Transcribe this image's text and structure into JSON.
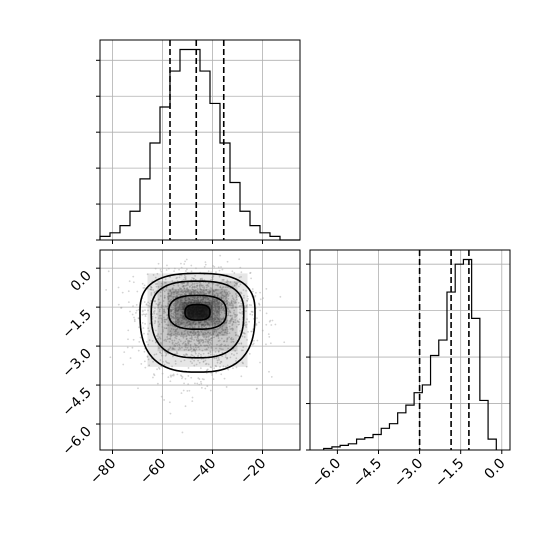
{
  "chart_data": [
    {
      "panel": "top-left",
      "type": "histogram",
      "xlim": [
        -85,
        -5
      ],
      "x_ticks": [
        -80,
        -60,
        -40,
        -20
      ],
      "x_tick_labels_visible": false,
      "y_tick_labels_visible": false,
      "grid": true,
      "bin_edges": [
        -85,
        -81,
        -77,
        -73,
        -69,
        -65,
        -61,
        -57,
        -53,
        -49,
        -45,
        -41,
        -37,
        -33,
        -29,
        -25,
        -21,
        -17,
        -13,
        -9,
        -5
      ],
      "counts": [
        1,
        2,
        4,
        8,
        17,
        27,
        37,
        47,
        53,
        53,
        47,
        38,
        27,
        16,
        8,
        4,
        2,
        1,
        0,
        0
      ],
      "quantile_lines": [
        -57,
        -46.5,
        -35.5
      ],
      "line_style": "dashed",
      "color": "#000000"
    },
    {
      "panel": "bottom-left",
      "type": "2d-density",
      "xlim": [
        -85,
        -5
      ],
      "ylim": [
        -7,
        0.7
      ],
      "x_ticks": [
        -80,
        -60,
        -40,
        -20
      ],
      "x_tick_labels": [
        "−80",
        "−60",
        "−40",
        "−20"
      ],
      "y_ticks": [
        0.0,
        -1.5,
        -3.0,
        -4.5,
        -6.0
      ],
      "y_tick_labels": [
        "0.0",
        "−1.5",
        "−3.0",
        "−4.5",
        "−6.0"
      ],
      "grid": true,
      "center": [
        -46,
        -1.7
      ],
      "contour_levels": [
        {
          "x_halfwidth": 23,
          "y_up": 1.5,
          "y_down": 2.3
        },
        {
          "x_halfwidth": 18.5,
          "y_up": 1.2,
          "y_down": 1.75
        },
        {
          "x_halfwidth": 11.5,
          "y_up": 0.65,
          "y_down": 0.65
        },
        {
          "x_halfwidth": 5,
          "y_up": 0.3,
          "y_down": 0.3
        }
      ],
      "scatter_color": "#a0a0a0",
      "contour_color": "#000000"
    },
    {
      "panel": "bottom-right",
      "type": "histogram",
      "xlim": [
        -7,
        0.3
      ],
      "x_ticks": [
        -6.0,
        -4.5,
        -3.0,
        -1.5,
        0.0
      ],
      "x_tick_labels": [
        "−6.0",
        "−4.5",
        "−3.0",
        "−1.5",
        "0.0"
      ],
      "y_tick_labels_visible": false,
      "grid": true,
      "bin_edges": [
        -6.5,
        -6.2,
        -5.9,
        -5.6,
        -5.3,
        -5.0,
        -4.7,
        -4.4,
        -4.1,
        -3.8,
        -3.5,
        -3.2,
        -2.9,
        -2.6,
        -2.3,
        -2.0,
        -1.7,
        -1.4,
        -1.1,
        -0.8,
        -0.5,
        -0.2
      ],
      "counts": [
        1,
        2,
        3,
        4,
        7,
        8,
        10,
        14,
        17,
        24,
        29,
        37,
        42,
        61,
        71,
        102,
        120,
        123,
        85,
        32,
        7
      ],
      "quantile_lines": [
        -3.0,
        -1.85,
        -1.2
      ],
      "line_style": "dashed",
      "color": "#000000"
    }
  ]
}
